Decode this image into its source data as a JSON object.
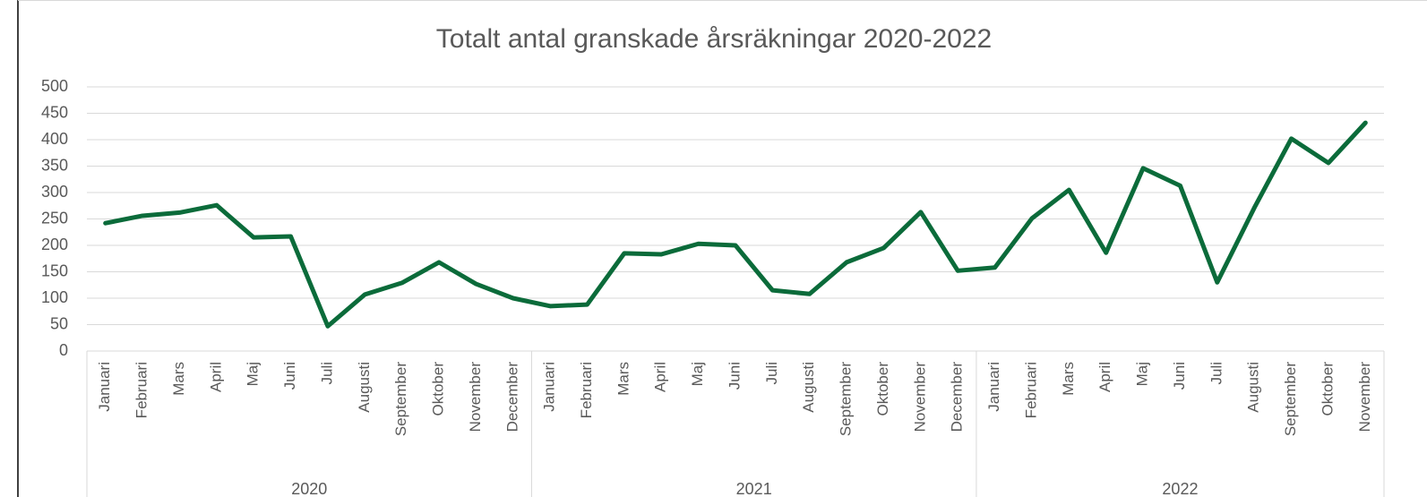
{
  "chart_data": {
    "type": "line",
    "title": "Totalt antal granskade årsräkningar 2020-2022",
    "color": "#0b6b3a",
    "groups": [
      {
        "label": "2020",
        "categories": [
          "Januari",
          "Februari",
          "Mars",
          "April",
          "Maj",
          "Juni",
          "Juli",
          "Augusti",
          "September",
          "Oktober",
          "November",
          "December"
        ],
        "values": [
          242,
          256,
          262,
          276,
          215,
          217,
          47,
          107,
          129,
          168,
          127,
          100
        ]
      },
      {
        "label": "2021",
        "categories": [
          "Januari",
          "Februari",
          "Mars",
          "April",
          "Maj",
          "Juni",
          "Juli",
          "Augusti",
          "September",
          "Oktober",
          "November",
          "December"
        ],
        "values": [
          85,
          88,
          185,
          183,
          203,
          200,
          115,
          108,
          168,
          195,
          263,
          152
        ]
      },
      {
        "label": "2022",
        "categories": [
          "Januari",
          "Februari",
          "Mars",
          "April",
          "Maj",
          "Juni",
          "Juli",
          "Augusti",
          "September",
          "Oktober",
          "November"
        ],
        "values": [
          158,
          251,
          305,
          186,
          346,
          313,
          130,
          271,
          402,
          356,
          432
        ]
      }
    ],
    "ylim": [
      0,
      500
    ],
    "yticks": [
      0,
      50,
      100,
      150,
      200,
      250,
      300,
      350,
      400,
      450,
      500
    ],
    "grid": true
  }
}
